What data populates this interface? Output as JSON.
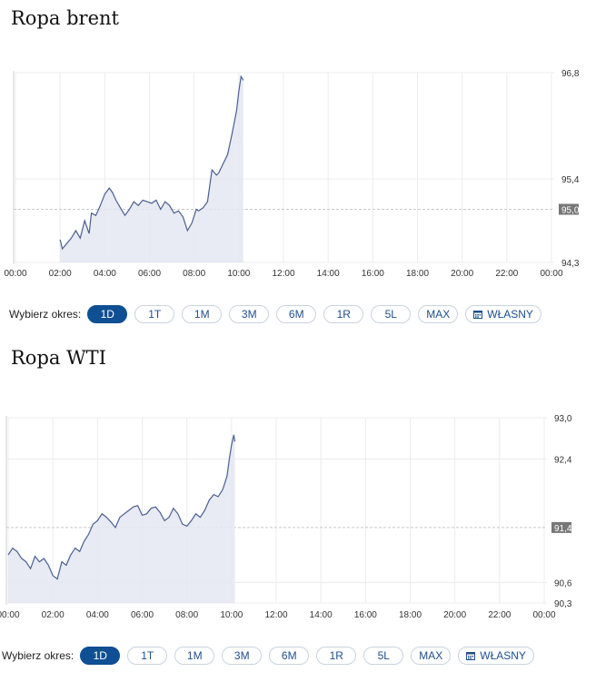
{
  "charts": [
    {
      "title": "Ropa brent",
      "period_label": "Wybierz okres:",
      "periods": [
        "1D",
        "1T",
        "1M",
        "3M",
        "6M",
        "1R",
        "5L",
        "MAX"
      ],
      "custom_period": "WŁASNY",
      "active_period": "1D",
      "current_price_label": "95,0"
    },
    {
      "title": "Ropa WTI",
      "period_label": "Wybierz okres:",
      "periods": [
        "1D",
        "1T",
        "1M",
        "3M",
        "6M",
        "1R",
        "5L",
        "MAX"
      ],
      "custom_period": "WŁASNY",
      "active_period": "1D",
      "current_price_label": "91,4"
    }
  ],
  "colors": {
    "line": "#4a5f8f",
    "fill": "#e4e6f2",
    "active_pill": "#0f4f93",
    "price_tag": "#777777"
  },
  "icons": {
    "custom_period": "calendar-icon"
  },
  "chart_data": [
    {
      "type": "area",
      "x_tick_labels": [
        "00:00",
        "02:00",
        "04:00",
        "06:00",
        "08:00",
        "10:00",
        "12:00",
        "14:00",
        "16:00",
        "18:00",
        "20:00",
        "22:00",
        "00:00"
      ],
      "y_tick_labels": [
        "96,8",
        "95,4",
        "94,3"
      ],
      "y_ticks": [
        96.8,
        95.4,
        94.3
      ],
      "ylim": [
        94.3,
        96.8
      ],
      "reference_line": 95.0,
      "grid": true,
      "series": [
        {
          "x": [
            2.0,
            2.1,
            2.3,
            2.5,
            2.7,
            2.9,
            3.1,
            3.3,
            3.4,
            3.6,
            3.8,
            4.0,
            4.2,
            4.35,
            4.5,
            4.7,
            4.9,
            5.1,
            5.3,
            5.5,
            5.7,
            5.9,
            6.1,
            6.3,
            6.5,
            6.7,
            6.9,
            7.1,
            7.3,
            7.5,
            7.7,
            7.9,
            8.1,
            8.2,
            8.4,
            8.6,
            8.8,
            9.0,
            9.1,
            9.3,
            9.5,
            9.7,
            9.9,
            10.0,
            10.1,
            10.2
          ],
          "y": [
            94.6,
            94.48,
            94.55,
            94.62,
            94.72,
            94.62,
            94.85,
            94.68,
            94.95,
            94.92,
            95.05,
            95.2,
            95.28,
            95.22,
            95.12,
            95.02,
            94.92,
            95.0,
            95.1,
            95.05,
            95.12,
            95.1,
            95.08,
            95.12,
            95.0,
            95.1,
            95.05,
            94.95,
            94.98,
            94.9,
            94.72,
            94.82,
            95.0,
            94.98,
            95.02,
            95.1,
            95.52,
            95.45,
            95.48,
            95.6,
            95.72,
            96.0,
            96.3,
            96.55,
            96.75,
            96.7
          ]
        }
      ]
    },
    {
      "type": "area",
      "x_tick_labels": [
        "00:00",
        "02:00",
        "04:00",
        "06:00",
        "08:00",
        "10:00",
        "12:00",
        "14:00",
        "16:00",
        "18:00",
        "20:00",
        "22:00",
        "00:00"
      ],
      "y_tick_labels": [
        "93,0",
        "92,4",
        "90,6",
        "90,3"
      ],
      "y_ticks": [
        93.0,
        92.4,
        90.6,
        90.3
      ],
      "ylim": [
        90.3,
        93.0
      ],
      "reference_line": 91.4,
      "grid": true,
      "series": [
        {
          "x": [
            0.0,
            0.2,
            0.4,
            0.6,
            0.8,
            1.0,
            1.2,
            1.4,
            1.6,
            1.8,
            2.0,
            2.2,
            2.4,
            2.6,
            2.8,
            3.0,
            3.2,
            3.4,
            3.6,
            3.8,
            4.0,
            4.2,
            4.4,
            4.6,
            4.8,
            5.0,
            5.2,
            5.4,
            5.6,
            5.8,
            6.0,
            6.2,
            6.4,
            6.6,
            6.8,
            7.0,
            7.2,
            7.4,
            7.6,
            7.8,
            8.0,
            8.2,
            8.4,
            8.6,
            8.8,
            9.0,
            9.2,
            9.4,
            9.6,
            9.7,
            9.8,
            9.9,
            10.0,
            10.1,
            10.15
          ],
          "y": [
            91.0,
            91.1,
            91.05,
            90.95,
            90.9,
            90.8,
            90.98,
            90.9,
            90.95,
            90.85,
            90.7,
            90.65,
            90.9,
            90.85,
            91.0,
            91.1,
            91.05,
            91.2,
            91.3,
            91.45,
            91.5,
            91.6,
            91.55,
            91.48,
            91.4,
            91.55,
            91.6,
            91.65,
            91.7,
            91.72,
            91.58,
            91.6,
            91.68,
            91.7,
            91.62,
            91.5,
            91.55,
            91.68,
            91.6,
            91.45,
            91.42,
            91.5,
            91.6,
            91.55,
            91.65,
            91.8,
            91.88,
            91.85,
            91.95,
            92.05,
            92.15,
            92.4,
            92.6,
            92.75,
            92.65
          ]
        }
      ]
    }
  ]
}
